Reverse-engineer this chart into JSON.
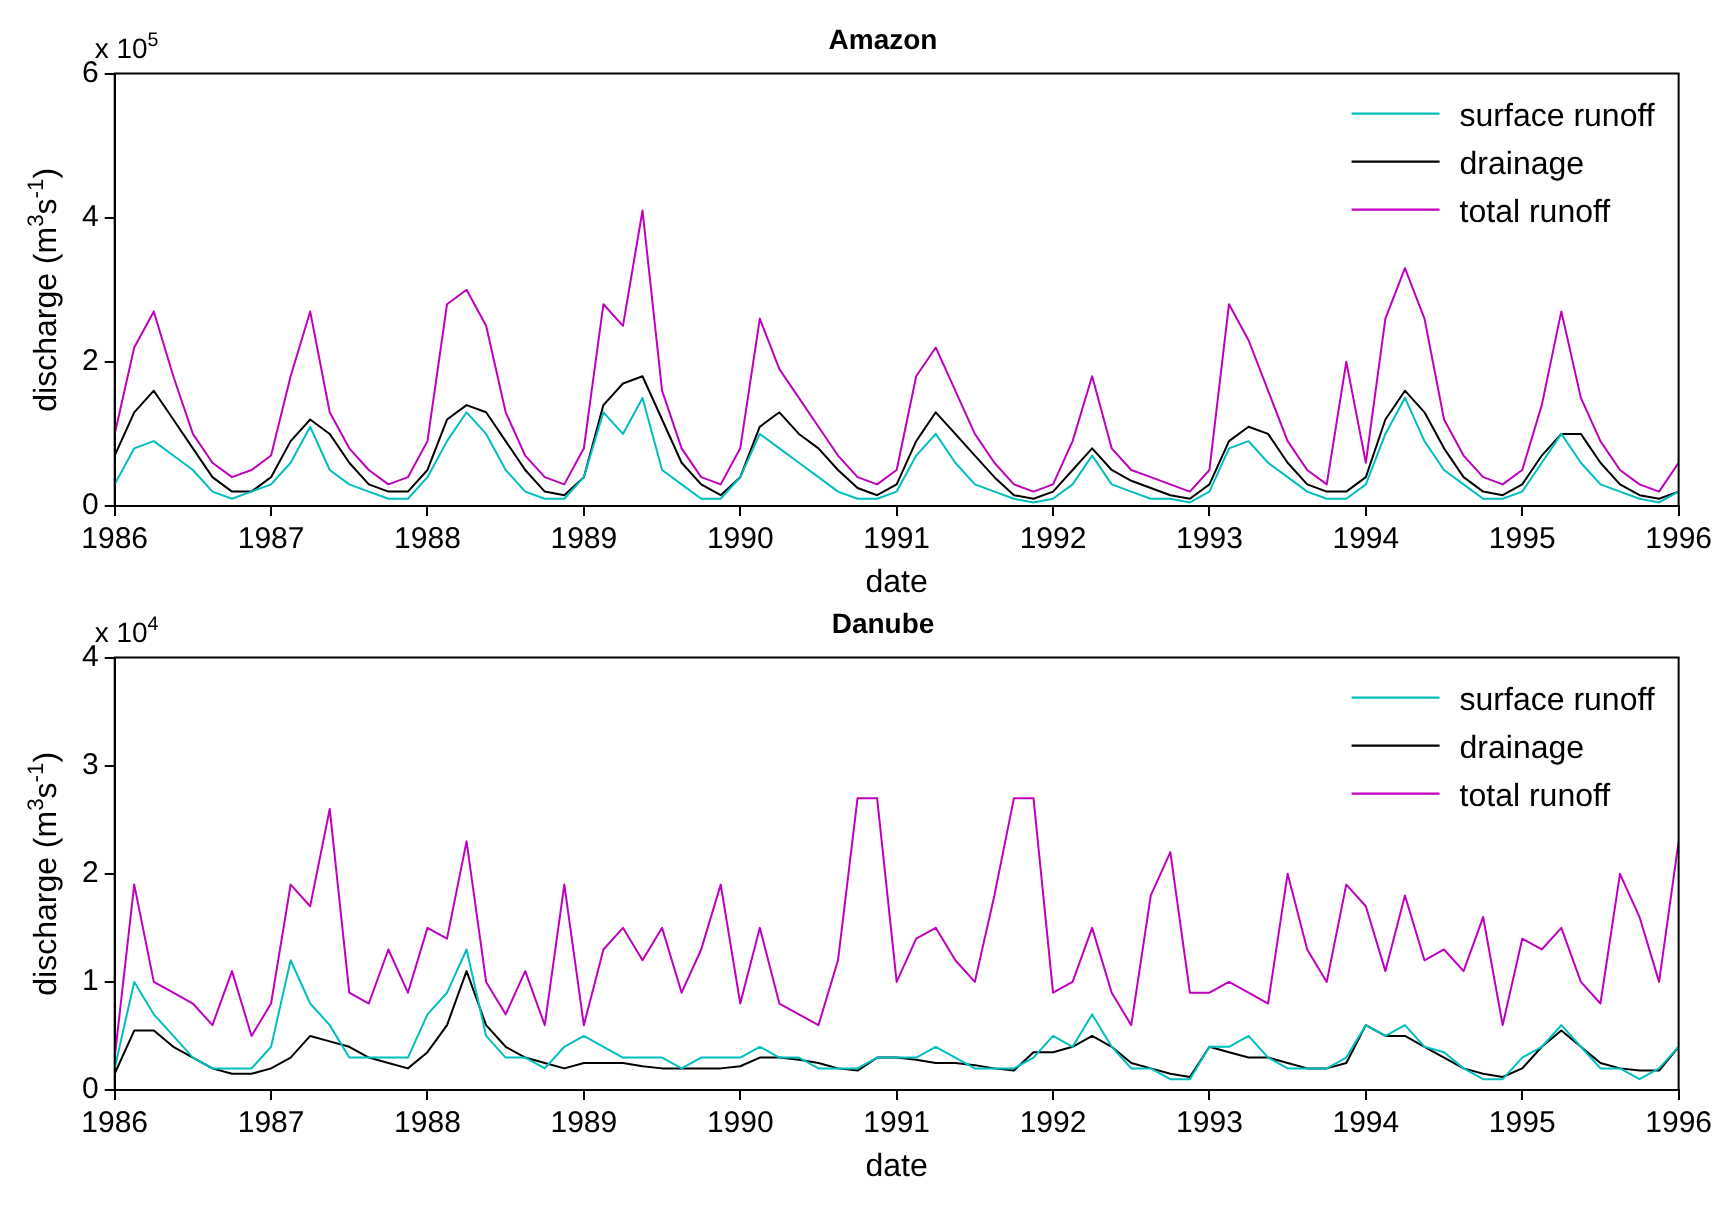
{
  "chart_data": [
    {
      "type": "line",
      "title": "Amazon",
      "xlabel": "date",
      "ylabel": "discharge (m$^{3}$s$^{-1}$)",
      "annotations": [
        "x 10$^{5}$"
      ],
      "xlim": [
        1986,
        1996
      ],
      "xticks": [
        1986,
        1987,
        1988,
        1989,
        1990,
        1991,
        1992,
        1993,
        1994,
        1995,
        1996
      ],
      "ylim": [
        0,
        6
      ],
      "yticks": [
        0,
        2,
        4,
        6
      ],
      "grid": false,
      "legend": "top right",
      "marker": "none",
      "line_style": "solid",
      "x": [
        1986,
        1986.125,
        1986.25,
        1986.375,
        1986.5,
        1986.625,
        1986.75,
        1986.875,
        1987,
        1987.125,
        1987.25,
        1987.375,
        1987.5,
        1987.625,
        1987.75,
        1987.875,
        1988,
        1988.125,
        1988.25,
        1988.375,
        1988.5,
        1988.625,
        1988.75,
        1988.875,
        1989,
        1989.125,
        1989.25,
        1989.375,
        1989.5,
        1989.625,
        1989.75,
        1989.875,
        1990,
        1990.125,
        1990.25,
        1990.375,
        1990.5,
        1990.625,
        1990.75,
        1990.875,
        1991,
        1991.125,
        1991.25,
        1991.375,
        1991.5,
        1991.625,
        1991.75,
        1991.875,
        1992,
        1992.125,
        1992.25,
        1992.375,
        1992.5,
        1992.625,
        1992.75,
        1992.875,
        1993,
        1993.125,
        1993.25,
        1993.375,
        1993.5,
        1993.625,
        1993.75,
        1993.875,
        1994,
        1994.125,
        1994.25,
        1994.375,
        1994.5,
        1994.625,
        1994.75,
        1994.875,
        1995,
        1995.125,
        1995.25,
        1995.375,
        1995.5,
        1995.625,
        1995.75,
        1995.875,
        1996
      ],
      "series": [
        {
          "name": "surface runoff",
          "color": "#00bfbf",
          "values": [
            0.3,
            0.8,
            0.9,
            0.7,
            0.5,
            0.2,
            0.1,
            0.2,
            0.3,
            0.6,
            1.1,
            0.5,
            0.3,
            0.2,
            0.1,
            0.1,
            0.4,
            0.9,
            1.3,
            1.0,
            0.5,
            0.2,
            0.1,
            0.1,
            0.4,
            1.3,
            1.0,
            1.5,
            0.5,
            0.3,
            0.1,
            0.1,
            0.4,
            1.0,
            0.8,
            0.6,
            0.4,
            0.2,
            0.1,
            0.1,
            0.2,
            0.7,
            1.0,
            0.6,
            0.3,
            0.2,
            0.1,
            0.05,
            0.1,
            0.3,
            0.7,
            0.3,
            0.2,
            0.1,
            0.1,
            0.05,
            0.2,
            0.8,
            0.9,
            0.6,
            0.4,
            0.2,
            0.1,
            0.1,
            0.3,
            1.0,
            1.5,
            0.9,
            0.5,
            0.3,
            0.1,
            0.1,
            0.2,
            0.6,
            1.0,
            0.6,
            0.3,
            0.2,
            0.1,
            0.05,
            0.2
          ]
        },
        {
          "name": "drainage",
          "color": "#000000",
          "values": [
            0.7,
            1.3,
            1.6,
            1.2,
            0.8,
            0.4,
            0.2,
            0.2,
            0.4,
            0.9,
            1.2,
            1.0,
            0.6,
            0.3,
            0.2,
            0.2,
            0.5,
            1.2,
            1.4,
            1.3,
            0.9,
            0.5,
            0.2,
            0.15,
            0.4,
            1.4,
            1.7,
            1.8,
            1.2,
            0.6,
            0.3,
            0.15,
            0.4,
            1.1,
            1.3,
            1.0,
            0.8,
            0.5,
            0.25,
            0.15,
            0.3,
            0.9,
            1.3,
            1.0,
            0.7,
            0.4,
            0.15,
            0.1,
            0.2,
            0.5,
            0.8,
            0.5,
            0.35,
            0.25,
            0.15,
            0.1,
            0.3,
            0.9,
            1.1,
            1.0,
            0.6,
            0.3,
            0.2,
            0.2,
            0.4,
            1.2,
            1.6,
            1.3,
            0.8,
            0.4,
            0.2,
            0.15,
            0.3,
            0.7,
            1.0,
            1.0,
            0.6,
            0.3,
            0.15,
            0.1,
            0.2
          ]
        },
        {
          "name": "total runoff",
          "color": "#bf00bf",
          "values": [
            1.0,
            2.2,
            2.7,
            1.8,
            1.0,
            0.6,
            0.4,
            0.5,
            0.7,
            1.8,
            2.7,
            1.3,
            0.8,
            0.5,
            0.3,
            0.4,
            0.9,
            2.8,
            3.0,
            2.5,
            1.3,
            0.7,
            0.4,
            0.3,
            0.8,
            2.8,
            2.5,
            4.1,
            1.6,
            0.8,
            0.4,
            0.3,
            0.8,
            2.6,
            1.9,
            1.5,
            1.1,
            0.7,
            0.4,
            0.3,
            0.5,
            1.8,
            2.2,
            1.6,
            1.0,
            0.6,
            0.3,
            0.2,
            0.3,
            0.9,
            1.8,
            0.8,
            0.5,
            0.4,
            0.3,
            0.2,
            0.5,
            2.8,
            2.3,
            1.6,
            0.9,
            0.5,
            0.3,
            2.0,
            0.6,
            2.6,
            3.3,
            2.6,
            1.2,
            0.7,
            0.4,
            0.3,
            0.5,
            1.4,
            2.7,
            1.5,
            0.9,
            0.5,
            0.3,
            0.2,
            0.6
          ]
        }
      ]
    },
    {
      "type": "line",
      "title": "Danube",
      "xlabel": "date",
      "ylabel": "discharge (m$^{3}$s$^{-1}$)",
      "annotations": [
        "x 10$^{4}$"
      ],
      "xlim": [
        1986,
        1996
      ],
      "xticks": [
        1986,
        1987,
        1988,
        1989,
        1990,
        1991,
        1992,
        1993,
        1994,
        1995,
        1996
      ],
      "ylim": [
        0,
        4
      ],
      "yticks": [
        0,
        1,
        2,
        3,
        4
      ],
      "grid": false,
      "legend": "top right",
      "marker": "none",
      "line_style": "solid",
      "x": [
        1986,
        1986.125,
        1986.25,
        1986.375,
        1986.5,
        1986.625,
        1986.75,
        1986.875,
        1987,
        1987.125,
        1987.25,
        1987.375,
        1987.5,
        1987.625,
        1987.75,
        1987.875,
        1988,
        1988.125,
        1988.25,
        1988.375,
        1988.5,
        1988.625,
        1988.75,
        1988.875,
        1989,
        1989.125,
        1989.25,
        1989.375,
        1989.5,
        1989.625,
        1989.75,
        1989.875,
        1990,
        1990.125,
        1990.25,
        1990.375,
        1990.5,
        1990.625,
        1990.75,
        1990.875,
        1991,
        1991.125,
        1991.25,
        1991.375,
        1991.5,
        1991.625,
        1991.75,
        1991.875,
        1992,
        1992.125,
        1992.25,
        1992.375,
        1992.5,
        1992.625,
        1992.75,
        1992.875,
        1993,
        1993.125,
        1993.25,
        1993.375,
        1993.5,
        1993.625,
        1993.75,
        1993.875,
        1994,
        1994.125,
        1994.25,
        1994.375,
        1994.5,
        1994.625,
        1994.75,
        1994.875,
        1995,
        1995.125,
        1995.25,
        1995.375,
        1995.5,
        1995.625,
        1995.75,
        1995.875,
        1996
      ],
      "series": [
        {
          "name": "surface runoff",
          "color": "#00bfbf",
          "values": [
            0.2,
            1.0,
            0.7,
            0.5,
            0.3,
            0.2,
            0.2,
            0.2,
            0.4,
            1.2,
            0.8,
            0.6,
            0.3,
            0.3,
            0.3,
            0.3,
            0.7,
            0.9,
            1.3,
            0.5,
            0.3,
            0.3,
            0.2,
            0.4,
            0.5,
            0.4,
            0.3,
            0.3,
            0.3,
            0.2,
            0.3,
            0.3,
            0.3,
            0.4,
            0.3,
            0.3,
            0.2,
            0.2,
            0.2,
            0.3,
            0.3,
            0.3,
            0.4,
            0.3,
            0.2,
            0.2,
            0.2,
            0.3,
            0.5,
            0.4,
            0.7,
            0.4,
            0.2,
            0.2,
            0.1,
            0.1,
            0.4,
            0.4,
            0.5,
            0.3,
            0.2,
            0.2,
            0.2,
            0.3,
            0.6,
            0.5,
            0.6,
            0.4,
            0.35,
            0.2,
            0.1,
            0.1,
            0.3,
            0.4,
            0.6,
            0.4,
            0.2,
            0.2,
            0.1,
            0.2,
            0.4
          ]
        },
        {
          "name": "drainage",
          "color": "#000000",
          "values": [
            0.15,
            0.55,
            0.55,
            0.4,
            0.3,
            0.2,
            0.15,
            0.15,
            0.2,
            0.3,
            0.5,
            0.45,
            0.4,
            0.3,
            0.25,
            0.2,
            0.35,
            0.6,
            1.1,
            0.6,
            0.4,
            0.3,
            0.25,
            0.2,
            0.25,
            0.25,
            0.25,
            0.22,
            0.2,
            0.2,
            0.2,
            0.2,
            0.22,
            0.3,
            0.3,
            0.28,
            0.25,
            0.2,
            0.18,
            0.3,
            0.3,
            0.28,
            0.25,
            0.25,
            0.23,
            0.2,
            0.18,
            0.35,
            0.35,
            0.4,
            0.5,
            0.4,
            0.25,
            0.2,
            0.15,
            0.12,
            0.4,
            0.35,
            0.3,
            0.3,
            0.25,
            0.2,
            0.2,
            0.25,
            0.6,
            0.5,
            0.5,
            0.4,
            0.3,
            0.2,
            0.15,
            0.12,
            0.2,
            0.4,
            0.55,
            0.4,
            0.25,
            0.2,
            0.18,
            0.18,
            0.4
          ]
        },
        {
          "name": "total runoff",
          "color": "#bf00bf",
          "values": [
            0.3,
            1.9,
            1.0,
            0.9,
            0.8,
            0.6,
            1.1,
            0.5,
            0.8,
            1.9,
            1.7,
            2.6,
            0.9,
            0.8,
            1.3,
            0.9,
            1.5,
            1.4,
            2.3,
            1.0,
            0.7,
            1.1,
            0.6,
            1.9,
            0.6,
            1.3,
            1.5,
            1.2,
            1.5,
            0.9,
            1.3,
            1.9,
            0.8,
            1.5,
            0.8,
            0.7,
            0.6,
            1.2,
            2.7,
            2.7,
            1.0,
            1.4,
            1.5,
            1.2,
            1.0,
            1.8,
            2.7,
            2.7,
            0.9,
            1.0,
            1.5,
            0.9,
            0.6,
            1.8,
            2.2,
            0.9,
            0.9,
            1.0,
            0.9,
            0.8,
            2.0,
            1.3,
            1.0,
            1.9,
            1.7,
            1.1,
            1.8,
            1.2,
            1.3,
            1.1,
            1.6,
            0.6,
            1.4,
            1.3,
            1.5,
            1.0,
            0.8,
            2.0,
            1.6,
            1.0,
            2.3
          ]
        }
      ]
    }
  ]
}
